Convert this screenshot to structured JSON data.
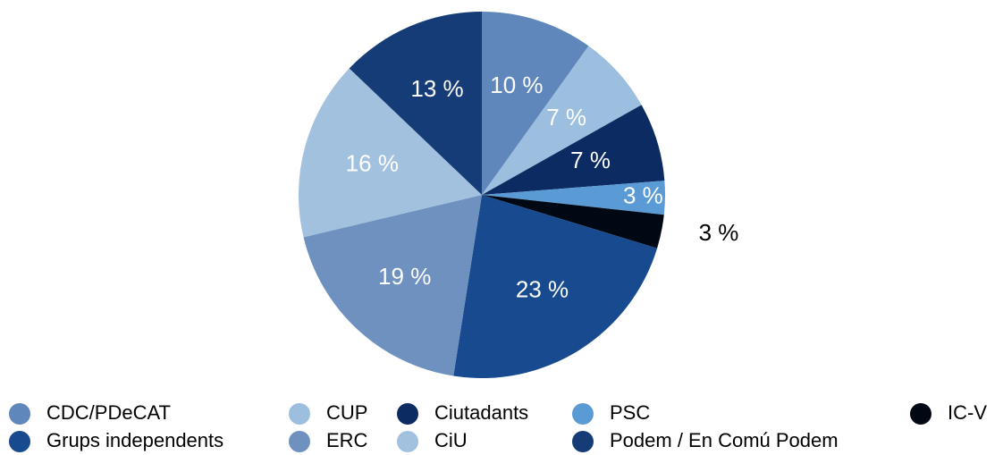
{
  "chart_data": {
    "type": "pie",
    "categories": [
      "CDC/PDeCAT",
      "CUP",
      "Ciutadants",
      "PSC",
      "IC-V",
      "Grups independents",
      "ERC",
      "CiU",
      "Podem / En Comú Podem"
    ],
    "values": [
      10,
      7,
      7,
      3,
      3,
      23,
      19,
      16,
      13
    ],
    "value_labels": [
      "10 %",
      "7 %",
      "7 %",
      "3 %",
      "3 %",
      "23 %",
      "19 %",
      "16 %",
      "13 %"
    ],
    "colors": [
      "#5f87bb",
      "#9dbfdf",
      "#0d2b63",
      "#5b9bd5",
      "#000814",
      "#174a8f",
      "#6e91c0",
      "#a2c1df",
      "#153c77"
    ]
  }
}
